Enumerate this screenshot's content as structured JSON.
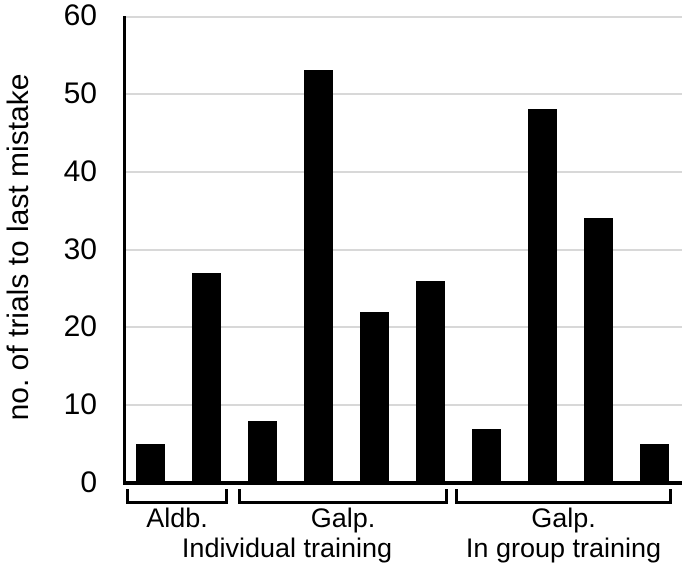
{
  "chart_data": {
    "type": "bar",
    "title": "",
    "xlabel": "",
    "ylabel": "no. of trials to last mistake",
    "ylim": [
      0,
      60
    ],
    "yticks": [
      0,
      10,
      20,
      30,
      40,
      50,
      60
    ],
    "grid": "horizontal",
    "legend": "none",
    "bar_color": "#000000",
    "gridline_color": "#d8d8d8",
    "axis_color": "#000000",
    "values": [
      5,
      27,
      8,
      53,
      22,
      26,
      7,
      48,
      34,
      5
    ],
    "groups": [
      {
        "label": "Aldb.",
        "values": [
          5,
          27
        ]
      },
      {
        "label": "Galp.",
        "values": [
          8,
          53,
          22,
          26
        ]
      },
      {
        "label": "Galp.",
        "values": [
          7,
          48,
          34,
          5
        ]
      }
    ],
    "training_labels": [
      {
        "label": "Individual training",
        "groups": [
          0,
          1
        ]
      },
      {
        "label": "In group training",
        "groups": [
          2
        ]
      }
    ]
  }
}
